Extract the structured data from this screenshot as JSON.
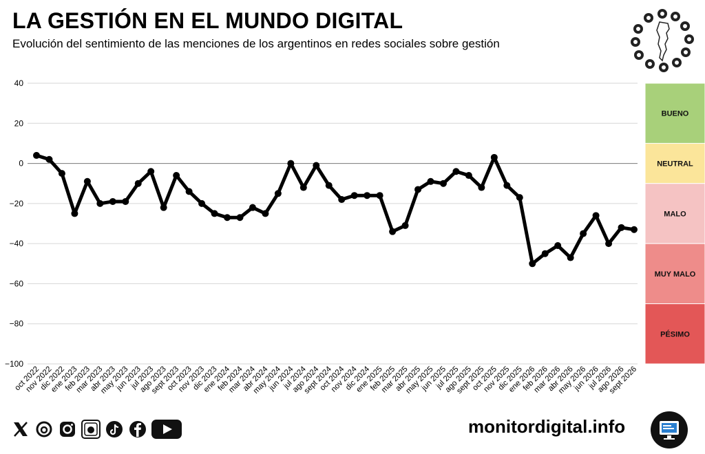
{
  "header": {
    "title": "LA GESTIÓN EN EL MUNDO DIGITAL",
    "subtitle": "Evolución del sentimiento de las menciones de los argentinos en redes sociales sobre gestión"
  },
  "footer": {
    "website": "monitordigital.info",
    "social_icons": [
      "x-icon",
      "threads-icon",
      "instagram-icon",
      "app-icon",
      "tiktok-icon",
      "facebook-icon",
      "youtube-icon"
    ]
  },
  "chart_data": {
    "type": "line",
    "title": "LA GESTIÓN EN EL MUNDO DIGITAL",
    "subtitle": "Evolución del sentimiento de las menciones de los argentinos en redes sociales sobre gestión",
    "xlabel": "",
    "ylabel": "",
    "ylim": [
      -100,
      40
    ],
    "yticks": [
      40,
      20,
      0,
      -20,
      -40,
      -60,
      -80,
      -100
    ],
    "grid": true,
    "categories": [
      "oct 2022",
      "nov 2022",
      "dic 2022",
      "ene 2023",
      "feb 2023",
      "mar 2023",
      "abr 2023",
      "may 2023",
      "jun 2023",
      "jul 2023",
      "ago 2023",
      "sept 2023",
      "oct 2023",
      "nov 2023",
      "dic 2023",
      "ene 2024",
      "feb 2024",
      "mar 2024",
      "abr 2024",
      "may 2024",
      "jun 2024",
      "jul 2024",
      "ago 2024",
      "sept 2024",
      "oct 2024",
      "nov 2024",
      "dic 2024",
      "ene 2025",
      "feb 2025",
      "mar 2025",
      "abr 2025",
      "may 2025",
      "jun 2025",
      "jul 2025",
      "ago 2025",
      "sept 2025",
      "oct 2025",
      "nov 2025",
      "dic 2025",
      "ene 2026",
      "feb 2026",
      "mar 2026",
      "abr 2026",
      "may 2026",
      "jun 2026",
      "jul 2026",
      "ago 2026",
      "sept 2026"
    ],
    "values": [
      4,
      2,
      -5,
      -25,
      -9,
      -20,
      -19,
      -19,
      -10,
      -4,
      -22,
      -6,
      -14,
      -20,
      -25,
      -27,
      -27,
      -22,
      -25,
      -15,
      0,
      -12,
      -1,
      -11,
      -18,
      -16,
      -16,
      -16,
      -34,
      -31,
      -13,
      -9,
      -10,
      -4,
      -6,
      -12,
      3,
      -11,
      -17,
      -50,
      -45,
      -41,
      -47,
      -35,
      -26,
      -40,
      -32,
      -33
    ],
    "line_color": "#000000",
    "bands": [
      {
        "label": "BUENO",
        "from": 10,
        "to": 40,
        "color": "#a8d07a"
      },
      {
        "label": "NEUTRAL",
        "from": -10,
        "to": 10,
        "color": "#fbe59a"
      },
      {
        "label": "MALO",
        "from": -40,
        "to": -10,
        "color": "#f5c3c3"
      },
      {
        "label": "MUY MALO",
        "from": -70,
        "to": -40,
        "color": "#ee8c8a"
      },
      {
        "label": "PÉSIMO",
        "from": -100,
        "to": -70,
        "color": "#e35757"
      }
    ]
  }
}
